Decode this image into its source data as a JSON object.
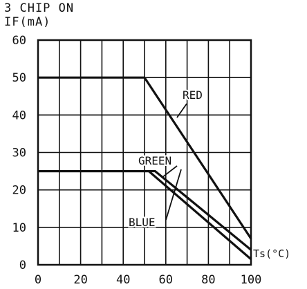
{
  "chart_data": {
    "type": "line",
    "title": "3 CHIP ON",
    "ylabel": "IF(mA)",
    "xlabel": "Ts(°C)",
    "xlim": [
      0,
      100
    ],
    "ylim": [
      0,
      60
    ],
    "x_ticks": [
      "0",
      "20",
      "40",
      "60",
      "80",
      "100"
    ],
    "y_ticks": [
      "0",
      "10",
      "20",
      "30",
      "40",
      "50",
      "60"
    ],
    "x_grid_step": 10,
    "y_grid_step": 10,
    "grid": true,
    "series": [
      {
        "name": "RED",
        "x": [
          0,
          50,
          100
        ],
        "y": [
          50,
          50,
          7
        ]
      },
      {
        "name": "GREEN",
        "x": [
          0,
          55,
          100
        ],
        "y": [
          25,
          25,
          4
        ]
      },
      {
        "name": "BLUE",
        "x": [
          0,
          52,
          100
        ],
        "y": [
          25,
          25,
          1.5
        ]
      }
    ],
    "line_color": "#111111"
  }
}
